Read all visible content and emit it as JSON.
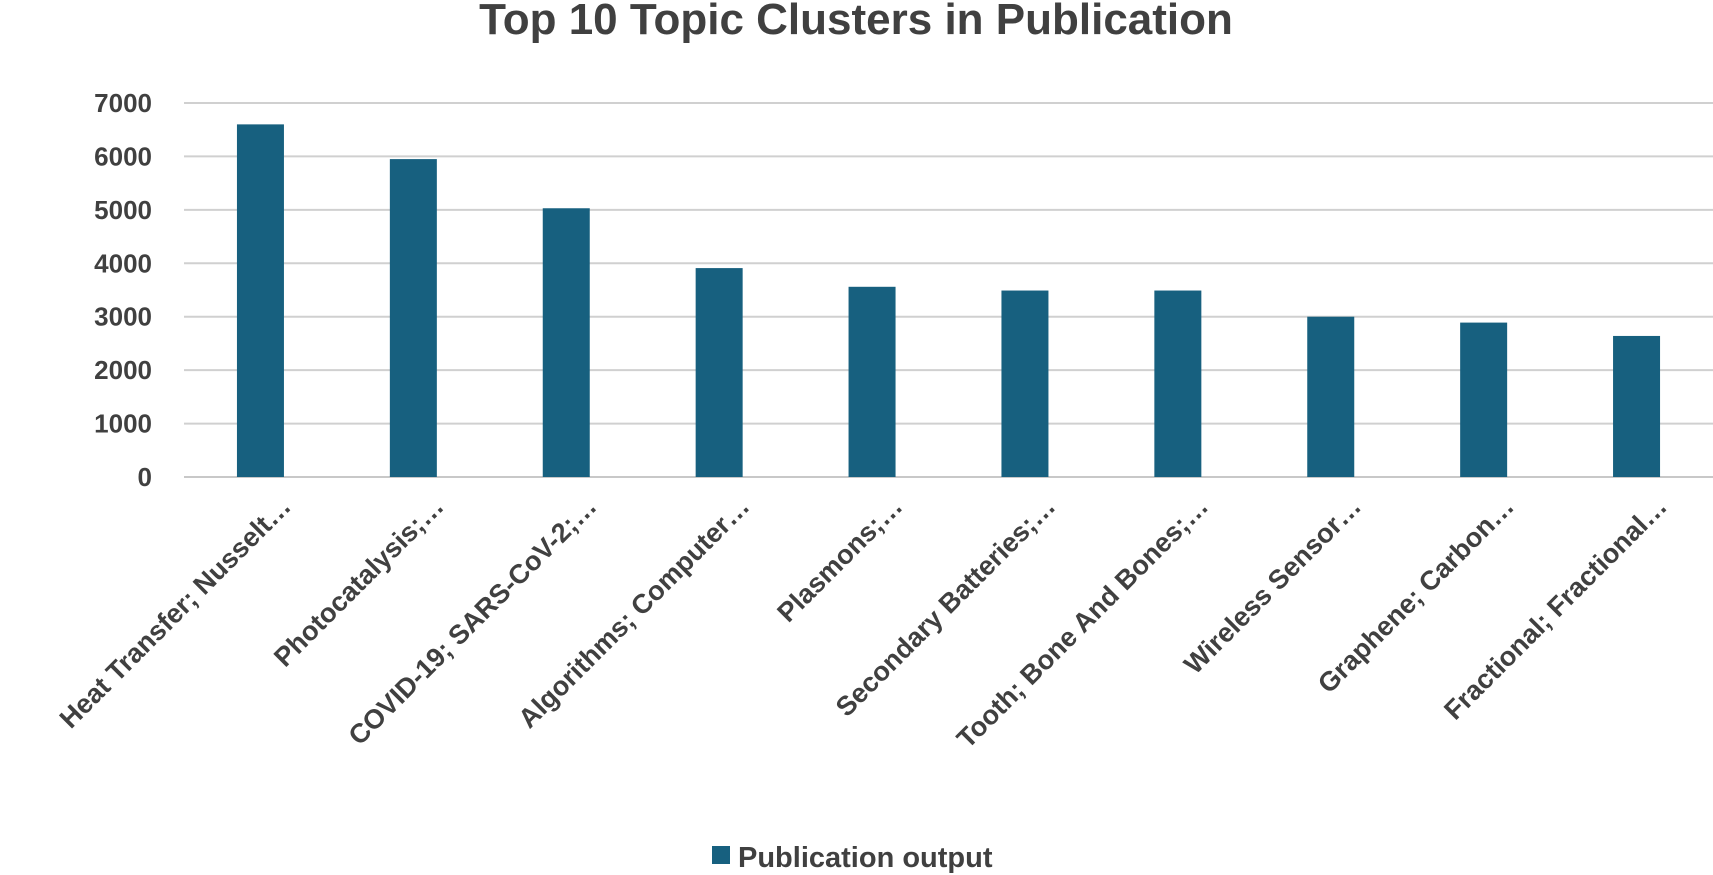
{
  "chart_data": {
    "type": "bar",
    "title": "Top 10 Topic Clusters in Publication",
    "xlabel": "",
    "ylabel": "",
    "categories": [
      "Heat Transfer; Nusselt…",
      "Photocatalysis;…",
      "COVID-19; SARS-CoV-2;…",
      "Algorithms; Computer…",
      "Plasmons;…",
      "Secondary Batteries;…",
      "Tooth; Bone And Bones;…",
      "Wireless Sensor…",
      "Graphene; Carbon…",
      "Fractional; Fractional…"
    ],
    "series": [
      {
        "name": "Publication output",
        "values": [
          6600,
          5950,
          5030,
          3910,
          3560,
          3490,
          3490,
          3000,
          2890,
          2640
        ]
      }
    ],
    "ylim": [
      0,
      7000
    ],
    "yticks": [
      "0",
      "1000",
      "2000",
      "3000",
      "4000",
      "5000",
      "6000",
      "7000"
    ],
    "grid": true,
    "legend_position": "bottom",
    "colors": {
      "bar": "#17607f",
      "grid": "#d0d0d0",
      "text": "#404040"
    }
  }
}
